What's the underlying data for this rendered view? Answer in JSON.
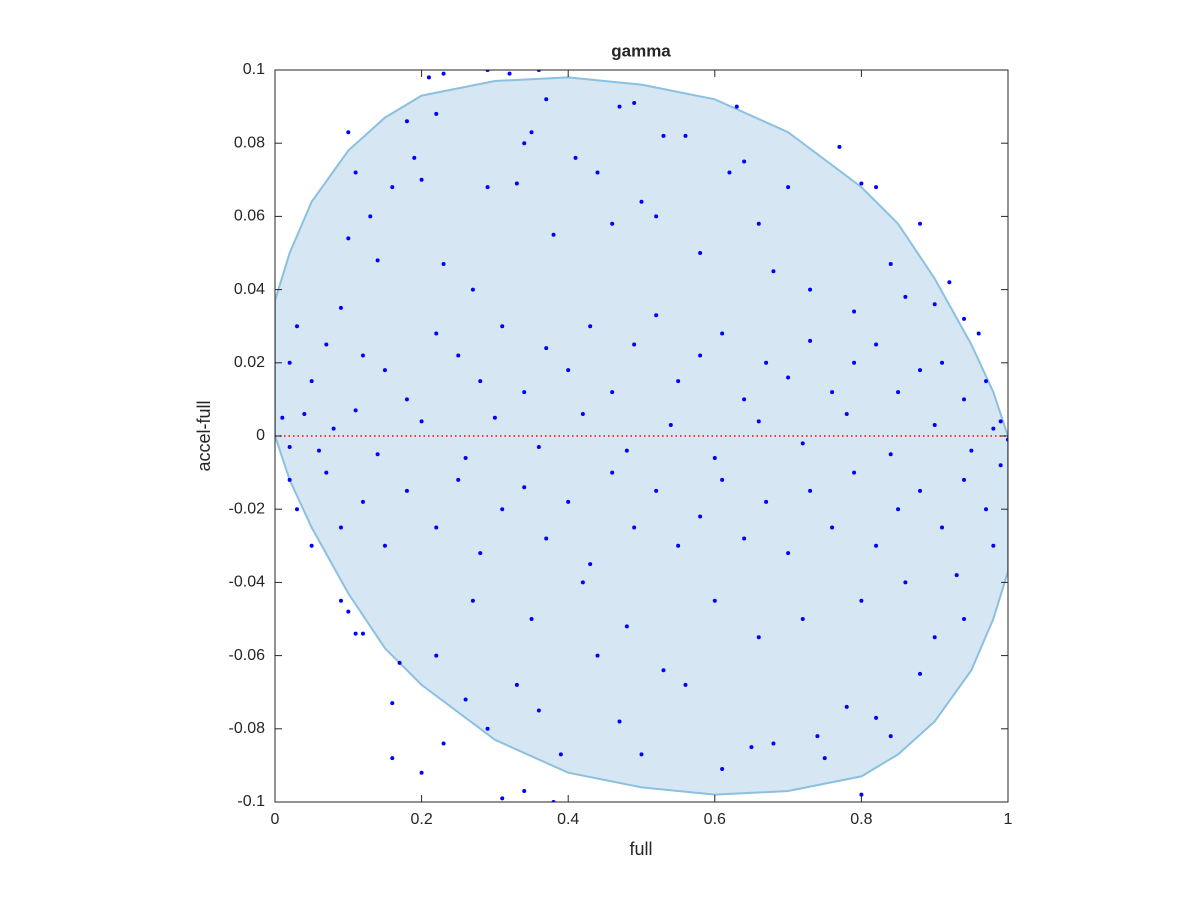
{
  "chart_data": {
    "type": "scatter",
    "title": "gamma",
    "xlabel": "full",
    "ylabel": "accel-full",
    "xlim": [
      0,
      1
    ],
    "ylim": [
      -0.1,
      0.1
    ],
    "xticks": [
      0,
      0.2,
      0.4,
      0.6,
      0.8,
      1
    ],
    "yticks": [
      -0.1,
      -0.08,
      -0.06,
      -0.04,
      -0.02,
      0,
      0.02,
      0.04,
      0.06,
      0.08,
      0.1
    ],
    "color": "#0000ff",
    "x": [
      0.21,
      0.23,
      0.29,
      0.32,
      0.36,
      0.37,
      0.47,
      0.49,
      0.53,
      0.56,
      0.63,
      0.1,
      0.11,
      0.18,
      0.22,
      0.34,
      0.35,
      0.77,
      0.8,
      0.82,
      0.88,
      0.62,
      0.64,
      0.7,
      0.5,
      0.41,
      0.44,
      0.19,
      0.2,
      0.16,
      0.13,
      0.1,
      0.14,
      0.23,
      0.27,
      0.29,
      0.33,
      0.38,
      0.46,
      0.52,
      0.58,
      0.66,
      0.68,
      0.73,
      0.79,
      0.84,
      0.86,
      0.9,
      0.94,
      0.96,
      0.92,
      0.02,
      0.03,
      0.05,
      0.07,
      0.09,
      0.12,
      0.15,
      0.18,
      0.22,
      0.25,
      0.28,
      0.31,
      0.34,
      0.37,
      0.4,
      0.43,
      0.46,
      0.49,
      0.52,
      0.55,
      0.58,
      0.61,
      0.64,
      0.67,
      0.7,
      0.73,
      0.76,
      0.79,
      0.82,
      0.85,
      0.88,
      0.91,
      0.94,
      0.97,
      0.99,
      0.01,
      0.02,
      0.04,
      0.06,
      0.08,
      0.11,
      0.14,
      0.2,
      0.26,
      0.3,
      0.36,
      0.42,
      0.48,
      0.54,
      0.6,
      0.66,
      0.72,
      0.78,
      0.84,
      0.9,
      0.95,
      0.98,
      1.0,
      0.02,
      0.03,
      0.05,
      0.07,
      0.09,
      0.12,
      0.15,
      0.18,
      0.22,
      0.25,
      0.28,
      0.31,
      0.34,
      0.37,
      0.4,
      0.43,
      0.46,
      0.49,
      0.52,
      0.55,
      0.58,
      0.61,
      0.64,
      0.67,
      0.7,
      0.73,
      0.76,
      0.79,
      0.82,
      0.85,
      0.88,
      0.91,
      0.94,
      0.97,
      0.99,
      0.09,
      0.1,
      0.11,
      0.12,
      0.16,
      0.16,
      0.2,
      0.23,
      0.31,
      0.34,
      0.38,
      0.39,
      0.8,
      0.17,
      0.22,
      0.26,
      0.29,
      0.33,
      0.36,
      0.44,
      0.47,
      0.5,
      0.53,
      0.56,
      0.61,
      0.65,
      0.68,
      0.74,
      0.75,
      0.78,
      0.82,
      0.84,
      0.88,
      0.9,
      0.94,
      0.27,
      0.35,
      0.42,
      0.48,
      0.6,
      0.66,
      0.72,
      0.8,
      0.86,
      0.93,
      0.98
    ],
    "values": [
      0.098,
      0.099,
      0.1,
      0.099,
      0.1,
      0.092,
      0.09,
      0.091,
      0.082,
      0.082,
      0.09,
      0.083,
      0.072,
      0.086,
      0.088,
      0.08,
      0.083,
      0.079,
      0.069,
      0.068,
      0.058,
      0.072,
      0.075,
      0.068,
      0.064,
      0.076,
      0.072,
      0.076,
      0.07,
      0.068,
      0.06,
      0.054,
      0.048,
      0.047,
      0.04,
      0.068,
      0.069,
      0.055,
      0.058,
      0.06,
      0.05,
      0.058,
      0.045,
      0.04,
      0.034,
      0.047,
      0.038,
      0.036,
      0.032,
      0.028,
      0.042,
      0.02,
      0.03,
      0.015,
      0.025,
      0.035,
      0.022,
      0.018,
      0.01,
      0.028,
      0.022,
      0.015,
      0.03,
      0.012,
      0.024,
      0.018,
      0.03,
      0.012,
      0.025,
      0.033,
      0.015,
      0.022,
      0.028,
      0.01,
      0.02,
      0.016,
      0.026,
      0.012,
      0.02,
      0.025,
      0.012,
      0.018,
      0.02,
      0.01,
      0.015,
      0.004,
      0.005,
      -0.003,
      0.006,
      -0.004,
      0.002,
      0.007,
      -0.005,
      0.004,
      -0.006,
      0.005,
      -0.003,
      0.006,
      -0.004,
      0.003,
      -0.006,
      0.004,
      -0.002,
      0.006,
      -0.005,
      0.003,
      -0.004,
      0.002,
      -0.001,
      -0.012,
      -0.02,
      -0.03,
      -0.01,
      -0.025,
      -0.018,
      -0.03,
      -0.015,
      -0.025,
      -0.012,
      -0.032,
      -0.02,
      -0.014,
      -0.028,
      -0.018,
      -0.035,
      -0.01,
      -0.025,
      -0.015,
      -0.03,
      -0.022,
      -0.012,
      -0.028,
      -0.018,
      -0.032,
      -0.015,
      -0.025,
      -0.01,
      -0.03,
      -0.02,
      -0.015,
      -0.025,
      -0.012,
      -0.02,
      -0.008,
      -0.045,
      -0.048,
      -0.054,
      -0.054,
      -0.073,
      -0.088,
      -0.092,
      -0.084,
      -0.099,
      -0.097,
      -0.1,
      -0.087,
      -0.098,
      -0.062,
      -0.06,
      -0.072,
      -0.08,
      -0.068,
      -0.075,
      -0.06,
      -0.078,
      -0.087,
      -0.064,
      -0.068,
      -0.091,
      -0.085,
      -0.084,
      -0.082,
      -0.088,
      -0.074,
      -0.077,
      -0.082,
      -0.065,
      -0.055,
      -0.05,
      -0.045,
      -0.05,
      -0.04,
      -0.052,
      -0.045,
      -0.055,
      -0.05,
      -0.045,
      -0.04,
      -0.038,
      -0.03
    ],
    "region": {
      "color": "#d6e6f3",
      "edge": "#8cc0e0",
      "x": [
        0,
        0.02,
        0.05,
        0.1,
        0.15,
        0.2,
        0.3,
        0.4,
        0.5,
        0.6,
        0.7,
        0.8,
        0.85,
        0.9,
        0.95,
        0.98,
        1,
        1,
        0.98,
        0.95,
        0.9,
        0.85,
        0.8,
        0.7,
        0.6,
        0.5,
        0.4,
        0.3,
        0.2,
        0.15,
        0.1,
        0.05,
        0.02,
        0
      ],
      "y": [
        0.037,
        0.05,
        0.064,
        0.078,
        0.087,
        0.093,
        0.097,
        0.098,
        0.096,
        0.092,
        0.083,
        0.068,
        0.058,
        0.043,
        0.025,
        0.012,
        0,
        -0.037,
        -0.05,
        -0.064,
        -0.078,
        -0.087,
        -0.093,
        -0.097,
        -0.098,
        -0.096,
        -0.092,
        -0.083,
        -0.068,
        -0.058,
        -0.043,
        -0.025,
        -0.012,
        0
      ]
    },
    "reference_line": {
      "y": 0,
      "color": "#ff0000"
    }
  }
}
